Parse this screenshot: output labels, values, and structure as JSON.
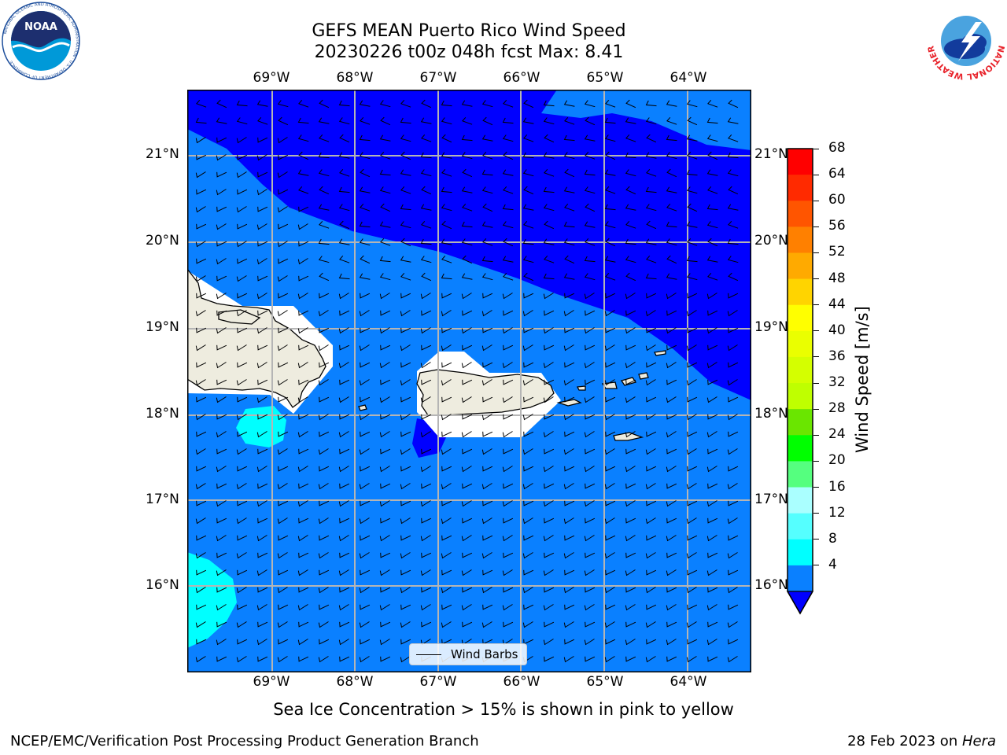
{
  "title": {
    "line1": "GEFS MEAN Puerto Rico Wind Speed",
    "line2": "20230226 t00z 048h fcst   Max: 8.41"
  },
  "map": {
    "lon_labels": [
      "69°W",
      "68°W",
      "67°W",
      "66°W",
      "65°W",
      "64°W"
    ],
    "lat_labels": [
      "21°N",
      "20°N",
      "19°N",
      "18°N",
      "17°N",
      "16°N"
    ],
    "legend_label": "Wind Barbs",
    "colors": {
      "band_4_8": "#0a80ff",
      "band_below_4": "#0000ff",
      "band_8_12": "#00ffff",
      "land": "#eeecdf",
      "no_data": "#ffffff",
      "grid": "#b5b5b5"
    }
  },
  "colorbar": {
    "label": "Wind Speed [m/s]",
    "ticks": [
      "68",
      "64",
      "60",
      "56",
      "52",
      "48",
      "44",
      "40",
      "36",
      "32",
      "28",
      "24",
      "20",
      "16",
      "12",
      "8",
      "4"
    ],
    "colors": [
      "#ff0000",
      "#ff2a00",
      "#ff5500",
      "#ff8000",
      "#ffaa00",
      "#ffd400",
      "#ffff00",
      "#eaff00",
      "#d4ff00",
      "#bfff00",
      "#6ae600",
      "#00ff00",
      "#55ff7f",
      "#aaffff",
      "#55ffff",
      "#00ffff",
      "#0a80ff"
    ],
    "extend_color": "#0000ff"
  },
  "caption": "Sea Ice Concentration > 15% is shown in pink to yellow",
  "footer": {
    "left": "NCEP/EMC/Verification Post Processing Product Generation Branch",
    "date": "28 Feb 2023 on ",
    "machine": "Hera"
  },
  "logos": {
    "noaa_text": "NOAA",
    "noaa_ring": "NATIONAL OCEANIC AND ATMOSPHERIC ADMINISTRATION · U.S. DEPARTMENT OF COMMERCE",
    "nws_ring": "NATIONAL WEATHER SERVICE"
  }
}
